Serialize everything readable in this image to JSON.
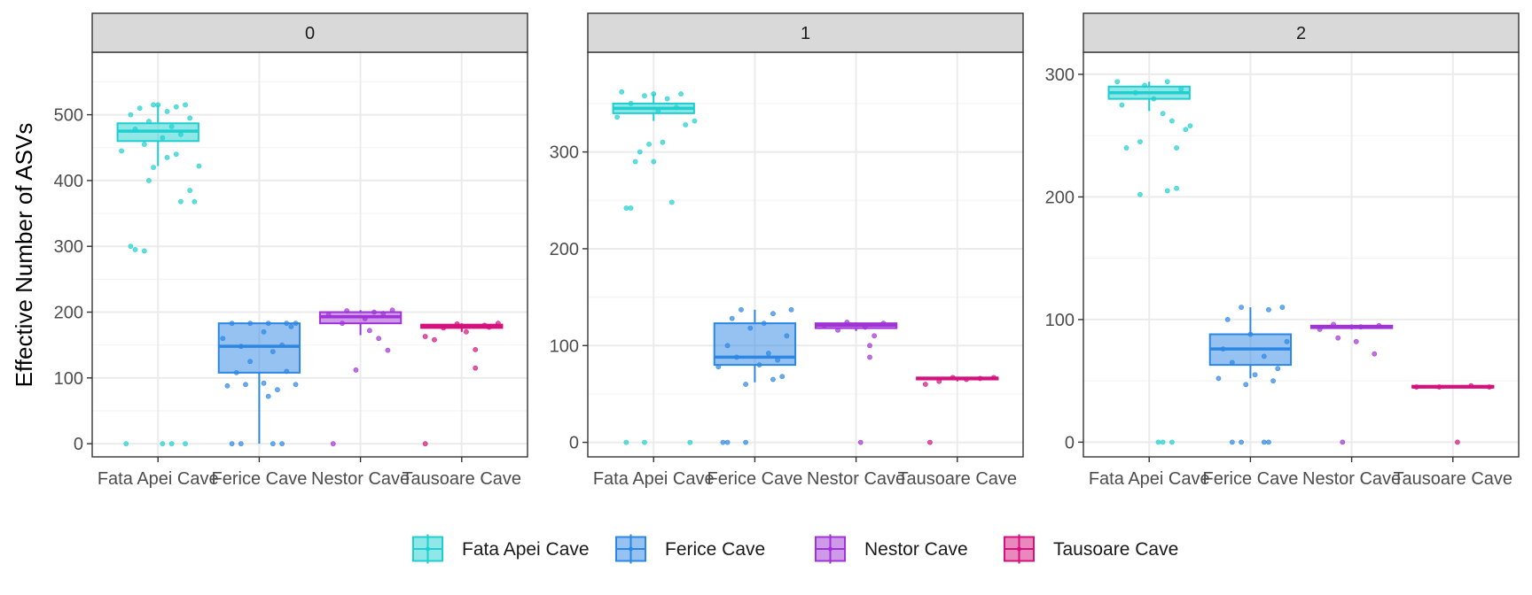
{
  "colors": {
    "Fata Apei Cave": "#1fcfcf",
    "Ferice Cave": "#2c86e4",
    "Nestor Cave": "#a033d6",
    "Tausoare Cave": "#d4117c",
    "strip_bg": "#d9d9d9",
    "grid_major": "#ebebeb",
    "grid_minor": "#f4f4f4",
    "border": "#333333"
  },
  "chart_data": {
    "type": "boxplot",
    "ylabel": "Effective Number of ASVs",
    "xlabel": "",
    "categories": [
      "Fata Apei Cave",
      "Ferice Cave",
      "Nestor Cave",
      "Tausoare Cave"
    ],
    "legend": {
      "position": "bottom",
      "entries": [
        "Fata Apei Cave",
        "Ferice Cave",
        "Nestor Cave",
        "Tausoare Cave"
      ]
    },
    "grid": true,
    "panels": [
      {
        "strip": "0",
        "ylim": [
          -20,
          595
        ],
        "yticks": [
          0,
          100,
          200,
          300,
          400,
          500
        ],
        "boxes": [
          {
            "category": "Fata Apei Cave",
            "min": 422,
            "q1": 460,
            "median": 475,
            "q3": 487,
            "max": 515,
            "points": [
              [
                0.3,
                0
              ],
              [
                0.1,
                0
              ],
              [
                -0.7,
                0
              ],
              [
                0.6,
                0
              ],
              [
                -0.6,
                300
              ],
              [
                -0.5,
                295
              ],
              [
                -0.3,
                293
              ],
              [
                0.5,
                368
              ],
              [
                0.7,
                385
              ],
              [
                0.8,
                368
              ],
              [
                0.9,
                422
              ],
              [
                -0.2,
                400
              ],
              [
                -0.1,
                420
              ],
              [
                0.2,
                435
              ],
              [
                0.4,
                440
              ],
              [
                -0.8,
                445
              ],
              [
                -0.3,
                455
              ],
              [
                0.1,
                465
              ],
              [
                0.5,
                470
              ],
              [
                -0.5,
                478
              ],
              [
                0.3,
                482
              ],
              [
                -0.2,
                490
              ],
              [
                0.7,
                495
              ],
              [
                -0.6,
                500
              ],
              [
                0.2,
                505
              ],
              [
                -0.4,
                510
              ],
              [
                0.4,
                512
              ],
              [
                0.6,
                515
              ],
              [
                -0.1,
                515
              ],
              [
                0.0,
                515
              ]
            ]
          },
          {
            "category": "Ferice Cave",
            "min": 0,
            "q1": 108,
            "median": 148,
            "q3": 183,
            "max": 183,
            "points": [
              [
                -0.6,
                0
              ],
              [
                -0.4,
                0
              ],
              [
                0.3,
                0
              ],
              [
                0.5,
                0
              ],
              [
                0.2,
                72
              ],
              [
                0.4,
                82
              ],
              [
                -0.7,
                88
              ],
              [
                -0.3,
                90
              ],
              [
                0.1,
                92
              ],
              [
                0.8,
                90
              ],
              [
                -0.5,
                108
              ],
              [
                0.6,
                110
              ],
              [
                -0.2,
                125
              ],
              [
                0.3,
                140
              ],
              [
                -0.4,
                148
              ],
              [
                0.5,
                150
              ],
              [
                -0.8,
                160
              ],
              [
                0.1,
                170
              ],
              [
                0.7,
                178
              ],
              [
                -0.6,
                183
              ],
              [
                -0.2,
                183
              ],
              [
                0.2,
                183
              ],
              [
                0.6,
                183
              ],
              [
                0.8,
                183
              ]
            ]
          },
          {
            "category": "Nestor Cave",
            "min": 165,
            "q1": 183,
            "median": 193,
            "q3": 200,
            "max": 203,
            "points": [
              [
                -0.6,
                0
              ],
              [
                -0.1,
                112
              ],
              [
                0.6,
                142
              ],
              [
                0.4,
                160
              ],
              [
                0.2,
                172
              ],
              [
                -0.4,
                183
              ],
              [
                0.1,
                190
              ],
              [
                -0.7,
                196
              ],
              [
                0.3,
                200
              ],
              [
                0.7,
                203
              ],
              [
                -0.3,
                202
              ],
              [
                0.5,
                198
              ]
            ]
          },
          {
            "category": "Tausoare Cave",
            "min": 170,
            "q1": 176,
            "median": 178,
            "q3": 181,
            "max": 183,
            "points": [
              [
                -0.8,
                0
              ],
              [
                0.3,
                115
              ],
              [
                0.3,
                143
              ],
              [
                -0.8,
                163
              ],
              [
                -0.6,
                158
              ],
              [
                0.1,
                170
              ],
              [
                -0.4,
                176
              ],
              [
                0.5,
                180
              ],
              [
                0.8,
                183
              ],
              [
                -0.1,
                182
              ],
              [
                0.6,
                177
              ]
            ]
          }
        ]
      },
      {
        "strip": "1",
        "ylim": [
          -15,
          403
        ],
        "yticks": [
          0,
          100,
          200,
          300
        ],
        "boxes": [
          {
            "category": "Fata Apei Cave",
            "min": 332,
            "q1": 340,
            "median": 345,
            "q3": 350,
            "max": 360,
            "points": [
              [
                -0.6,
                0
              ],
              [
                -0.2,
                0
              ],
              [
                0.8,
                0
              ],
              [
                -0.6,
                242
              ],
              [
                -0.5,
                242
              ],
              [
                0.4,
                248
              ],
              [
                -0.4,
                290
              ],
              [
                0.0,
                290
              ],
              [
                -0.3,
                300
              ],
              [
                -0.1,
                308
              ],
              [
                0.2,
                310
              ],
              [
                0.7,
                328
              ],
              [
                0.9,
                332
              ],
              [
                -0.8,
                336
              ],
              [
                0.1,
                342
              ],
              [
                0.5,
                346
              ],
              [
                -0.5,
                350
              ],
              [
                0.3,
                355
              ],
              [
                -0.2,
                358
              ],
              [
                0.6,
                360
              ],
              [
                -0.7,
                362
              ],
              [
                0.0,
                360
              ]
            ]
          },
          {
            "category": "Ferice Cave",
            "min": 62,
            "q1": 80,
            "median": 88,
            "q3": 123,
            "max": 137,
            "points": [
              [
                -0.7,
                0
              ],
              [
                -0.6,
                0
              ],
              [
                -0.2,
                0
              ],
              [
                -0.2,
                60
              ],
              [
                0.4,
                65
              ],
              [
                0.6,
                68
              ],
              [
                -0.8,
                78
              ],
              [
                0.1,
                80
              ],
              [
                0.5,
                85
              ],
              [
                -0.4,
                88
              ],
              [
                0.3,
                92
              ],
              [
                -0.6,
                100
              ],
              [
                0.7,
                110
              ],
              [
                -0.1,
                118
              ],
              [
                0.2,
                123
              ],
              [
                -0.5,
                128
              ],
              [
                0.4,
                133
              ],
              [
                0.8,
                137
              ],
              [
                -0.3,
                137
              ]
            ]
          },
          {
            "category": "Nestor Cave",
            "min": 115,
            "q1": 118,
            "median": 121,
            "q3": 123,
            "max": 124,
            "points": [
              [
                0.1,
                0
              ],
              [
                0.3,
                88
              ],
              [
                0.3,
                100
              ],
              [
                0.4,
                110
              ],
              [
                -0.4,
                116
              ],
              [
                0.2,
                119
              ],
              [
                -0.7,
                121
              ],
              [
                0.6,
                123
              ],
              [
                -0.2,
                124
              ]
            ]
          },
          {
            "category": "Tausoare Cave",
            "min": 63,
            "q1": 65,
            "median": 66,
            "q3": 67,
            "max": 67,
            "points": [
              [
                -0.6,
                0
              ],
              [
                -0.7,
                60
              ],
              [
                -0.4,
                63
              ],
              [
                0.2,
                65
              ],
              [
                0.5,
                66
              ],
              [
                0.8,
                67
              ],
              [
                -0.1,
                67
              ]
            ]
          }
        ]
      },
      {
        "strip": "2",
        "ylim": [
          -12,
          318
        ],
        "yticks": [
          0,
          100,
          200,
          300
        ],
        "boxes": [
          {
            "category": "Fata Apei Cave",
            "min": 270,
            "q1": 280,
            "median": 285,
            "q3": 290,
            "max": 294,
            "points": [
              [
                0.2,
                0
              ],
              [
                0.3,
                0
              ],
              [
                0.5,
                0
              ],
              [
                -0.2,
                202
              ],
              [
                0.4,
                205
              ],
              [
                0.6,
                207
              ],
              [
                -0.5,
                240
              ],
              [
                -0.2,
                245
              ],
              [
                0.6,
                240
              ],
              [
                0.8,
                255
              ],
              [
                0.9,
                258
              ],
              [
                0.5,
                262
              ],
              [
                0.3,
                268
              ],
              [
                -0.6,
                275
              ],
              [
                0.1,
                280
              ],
              [
                -0.3,
                285
              ],
              [
                0.7,
                288
              ],
              [
                -0.1,
                291
              ],
              [
                0.4,
                294
              ],
              [
                -0.7,
                294
              ]
            ]
          },
          {
            "category": "Ferice Cave",
            "min": 52,
            "q1": 63,
            "median": 76,
            "q3": 88,
            "max": 110,
            "points": [
              [
                -0.4,
                0
              ],
              [
                -0.2,
                0
              ],
              [
                0.3,
                0
              ],
              [
                0.4,
                0
              ],
              [
                -0.1,
                47
              ],
              [
                0.5,
                50
              ],
              [
                -0.7,
                52
              ],
              [
                0.1,
                55
              ],
              [
                0.6,
                60
              ],
              [
                -0.4,
                65
              ],
              [
                0.3,
                70
              ],
              [
                -0.6,
                76
              ],
              [
                0.8,
                82
              ],
              [
                0.0,
                88
              ],
              [
                -0.5,
                100
              ],
              [
                0.4,
                108
              ],
              [
                -0.2,
                110
              ],
              [
                0.7,
                110
              ]
            ]
          },
          {
            "category": "Nestor Cave",
            "min": 92,
            "q1": 93,
            "median": 94,
            "q3": 95,
            "max": 96,
            "points": [
              [
                -0.2,
                0
              ],
              [
                0.5,
                72
              ],
              [
                0.1,
                82
              ],
              [
                -0.3,
                85
              ],
              [
                -0.7,
                92
              ],
              [
                0.2,
                94
              ],
              [
                0.6,
                95
              ],
              [
                -0.4,
                96
              ]
            ]
          },
          {
            "category": "Tausoare Cave",
            "min": 44,
            "q1": 45,
            "median": 45,
            "q3": 46,
            "max": 46,
            "points": [
              [
                0.1,
                0
              ],
              [
                -0.8,
                45
              ],
              [
                -0.3,
                45
              ],
              [
                0.4,
                46
              ],
              [
                0.8,
                45
              ]
            ]
          }
        ]
      }
    ]
  }
}
